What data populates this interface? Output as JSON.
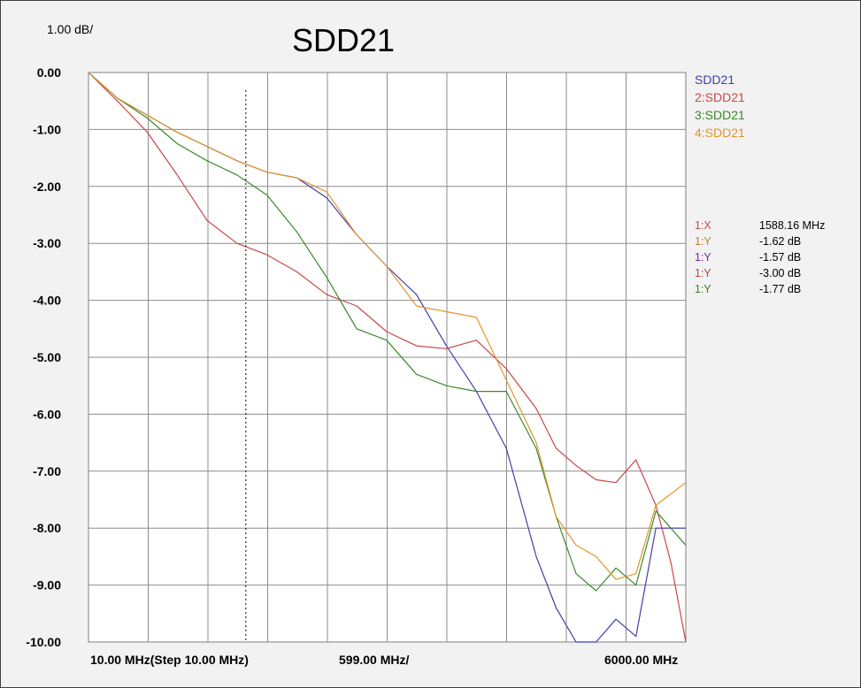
{
  "chart_data": {
    "type": "line",
    "title": "SDD21",
    "scale_label": "1.00 dB/",
    "x_labels": {
      "start": "10.00 MHz(Step 10.00 MHz)",
      "per_div": "599.00 MHz/",
      "stop": "6000.00 MHz"
    },
    "xlim": [
      10,
      6000
    ],
    "ylim": [
      -10,
      0
    ],
    "y_ticks": [
      "0.00",
      "-1.00",
      "-2.00",
      "-3.00",
      "-4.00",
      "-5.00",
      "-6.00",
      "-7.00",
      "-8.00",
      "-9.00",
      "-10.00"
    ],
    "grid": true,
    "legend_position": "right",
    "series": [
      {
        "name": "SDD21",
        "color": "#3f3fa8",
        "x": [
          10,
          300,
          600,
          900,
          1200,
          1500,
          1800,
          2100,
          2400,
          2700,
          3000,
          3300,
          3600,
          3900,
          4200,
          4500,
          4700,
          4900,
          5100,
          5300,
          5500,
          5700,
          6000
        ],
        "y": [
          0.0,
          -0.45,
          -0.75,
          -1.05,
          -1.3,
          -1.55,
          -1.75,
          -1.85,
          -2.2,
          -2.85,
          -3.4,
          -3.9,
          -4.8,
          -5.6,
          -6.6,
          -8.5,
          -9.4,
          -10.0,
          -10.0,
          -9.6,
          -9.9,
          -8.0,
          -8.0
        ]
      },
      {
        "name": "2:SDD21",
        "color": "#c84848",
        "x": [
          10,
          300,
          600,
          900,
          1200,
          1500,
          1800,
          2100,
          2400,
          2700,
          3000,
          3300,
          3600,
          3900,
          4200,
          4500,
          4700,
          4900,
          5100,
          5300,
          5500,
          5700,
          5850,
          6000
        ],
        "y": [
          0.0,
          -0.5,
          -1.05,
          -1.8,
          -2.6,
          -3.0,
          -3.2,
          -3.5,
          -3.9,
          -4.1,
          -4.55,
          -4.8,
          -4.85,
          -4.7,
          -5.2,
          -5.9,
          -6.6,
          -6.9,
          -7.15,
          -7.2,
          -6.8,
          -7.6,
          -8.6,
          -10.0
        ]
      },
      {
        "name": "3:SDD21",
        "color": "#3a8a2a",
        "x": [
          10,
          300,
          600,
          900,
          1200,
          1500,
          1800,
          2100,
          2400,
          2700,
          3000,
          3300,
          3600,
          3900,
          4200,
          4500,
          4700,
          4900,
          5100,
          5300,
          5500,
          5700,
          6000
        ],
        "y": [
          0.0,
          -0.45,
          -0.8,
          -1.25,
          -1.55,
          -1.8,
          -2.15,
          -2.8,
          -3.6,
          -4.5,
          -4.7,
          -5.3,
          -5.5,
          -5.6,
          -5.6,
          -6.6,
          -7.8,
          -8.8,
          -9.1,
          -8.7,
          -9.0,
          -7.7,
          -8.3
        ]
      },
      {
        "name": "4:SDD21",
        "color": "#e0962e",
        "x": [
          10,
          300,
          600,
          900,
          1200,
          1500,
          1800,
          2100,
          2400,
          2700,
          3000,
          3300,
          3600,
          3900,
          4200,
          4500,
          4700,
          4900,
          5100,
          5300,
          5500,
          5700,
          6000
        ],
        "y": [
          0.0,
          -0.45,
          -0.75,
          -1.05,
          -1.3,
          -1.55,
          -1.75,
          -1.85,
          -2.1,
          -2.85,
          -3.4,
          -4.1,
          -4.2,
          -4.3,
          -5.4,
          -6.5,
          -7.8,
          -8.3,
          -8.5,
          -8.9,
          -8.8,
          -7.6,
          -7.2
        ]
      }
    ],
    "marker": {
      "x": 1588.16,
      "rows": [
        {
          "key": "1:X",
          "value": "1588.16 MHz",
          "color": "#c05050"
        },
        {
          "key": "1:Y",
          "value": "-1.62 dB",
          "color": "#d07a2a"
        },
        {
          "key": "1:Y",
          "value": "-1.57 dB",
          "color": "#6a28a8"
        },
        {
          "key": "1:Y",
          "value": "-3.00 dB",
          "color": "#c04040"
        },
        {
          "key": "1:Y",
          "value": "-1.77 dB",
          "color": "#4a7a1a"
        }
      ]
    }
  }
}
